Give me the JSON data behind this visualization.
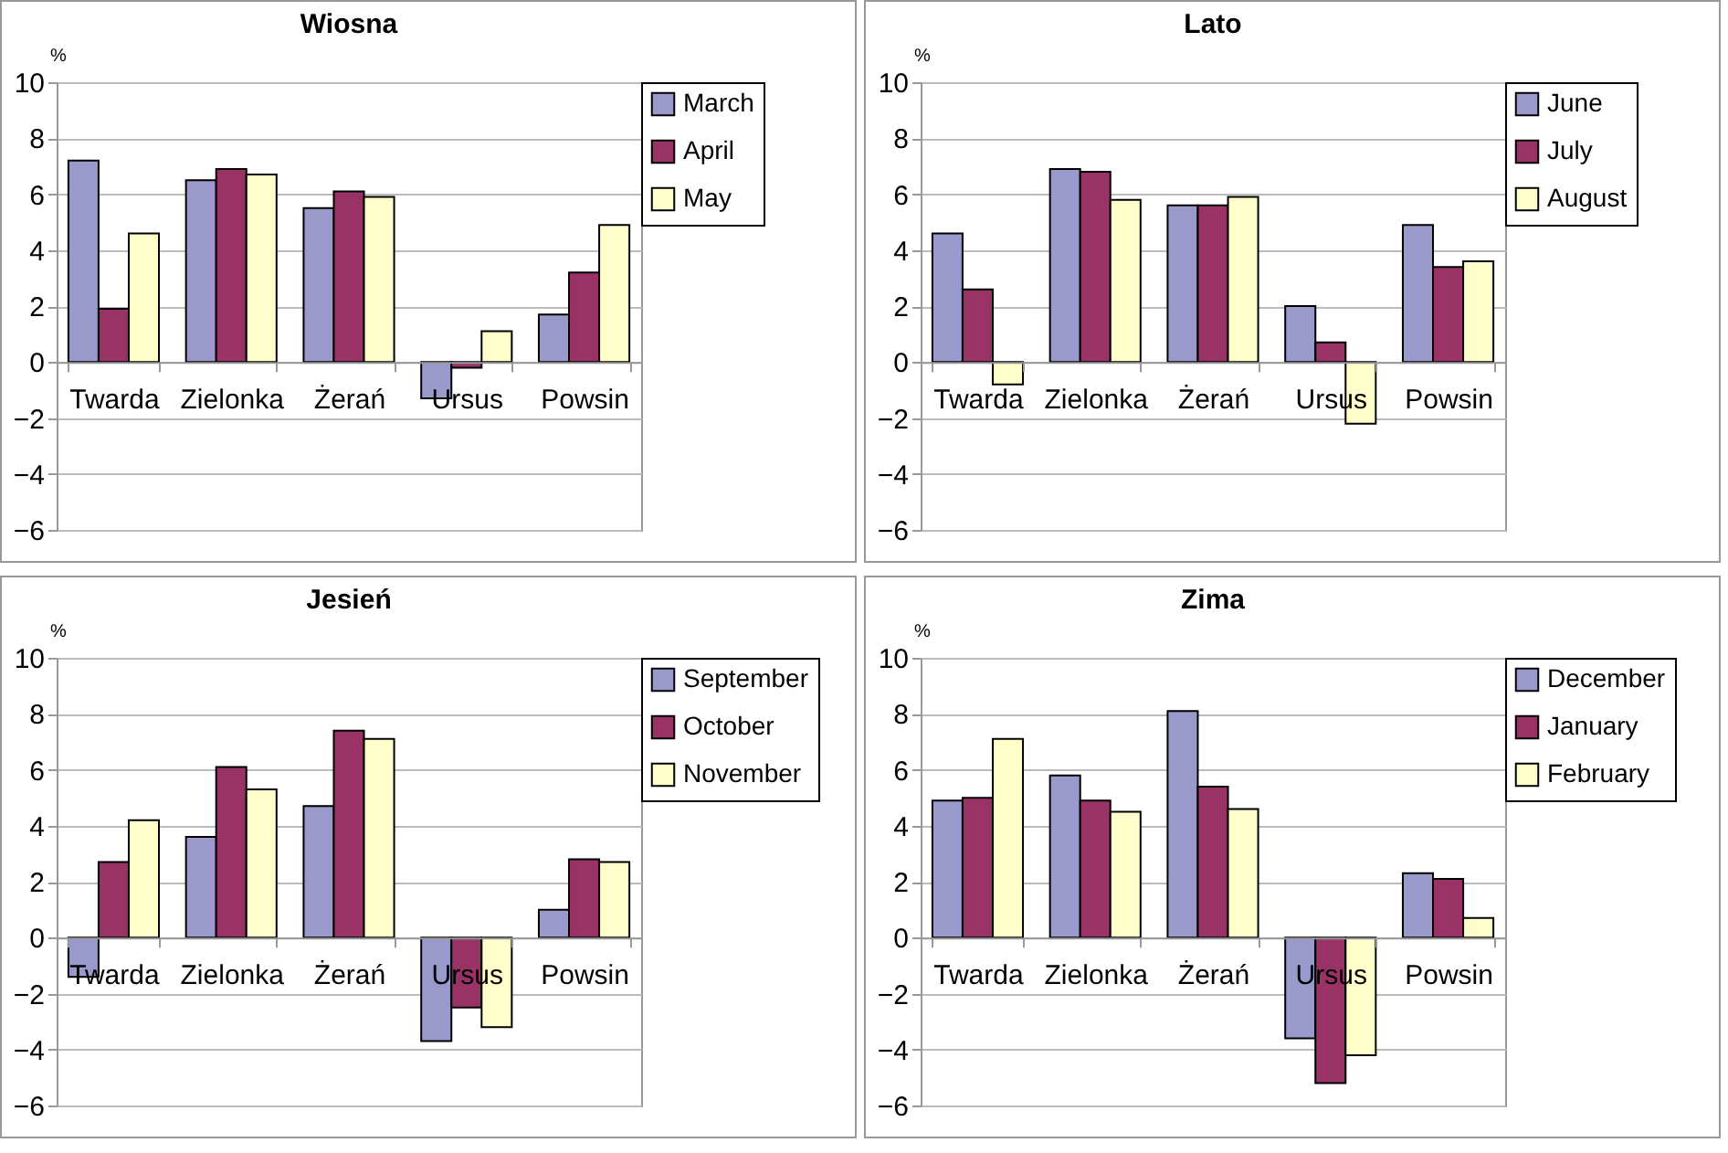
{
  "chart_data": [
    {
      "type": "bar",
      "title": "Wiosna",
      "ylabel": "%",
      "categories": [
        "Twarda",
        "Zielonka",
        "Żerań",
        "Ursus",
        "Powsin"
      ],
      "ylim": [
        -6,
        10
      ],
      "yticks": [
        -6,
        -4,
        -2,
        0,
        2,
        4,
        6,
        8,
        10
      ],
      "grid": "y",
      "legend": "top right",
      "series": [
        {
          "name": "March",
          "color": "#9999cc",
          "values": [
            7.2,
            6.5,
            5.5,
            -1.3,
            1.7
          ]
        },
        {
          "name": "April",
          "color": "#993366",
          "values": [
            1.9,
            6.9,
            6.1,
            -0.2,
            3.2
          ]
        },
        {
          "name": "May",
          "color": "#ffffcc",
          "values": [
            4.6,
            6.7,
            5.9,
            1.1,
            4.9
          ]
        }
      ]
    },
    {
      "type": "bar",
      "title": "Lato",
      "ylabel": "%",
      "categories": [
        "Twarda",
        "Zielonka",
        "Żerań",
        "Ursus",
        "Powsin"
      ],
      "ylim": [
        -6,
        10
      ],
      "yticks": [
        -6,
        -4,
        -2,
        0,
        2,
        4,
        6,
        8,
        10
      ],
      "grid": "y",
      "legend": "top right",
      "series": [
        {
          "name": "June",
          "color": "#9999cc",
          "values": [
            4.6,
            6.9,
            5.6,
            2.0,
            4.9
          ]
        },
        {
          "name": "July",
          "color": "#993366",
          "values": [
            2.6,
            6.8,
            5.6,
            0.7,
            3.4
          ]
        },
        {
          "name": "August",
          "color": "#ffffcc",
          "values": [
            -0.8,
            5.8,
            5.9,
            -2.2,
            3.6
          ]
        }
      ]
    },
    {
      "type": "bar",
      "title": "Jesień",
      "ylabel": "%",
      "categories": [
        "Twarda",
        "Zielonka",
        "Żerań",
        "Ursus",
        "Powsin"
      ],
      "ylim": [
        -6,
        10
      ],
      "yticks": [
        -6,
        -4,
        -2,
        0,
        2,
        4,
        6,
        8,
        10
      ],
      "grid": "y",
      "legend": "top right",
      "series": [
        {
          "name": "September",
          "color": "#9999cc",
          "values": [
            -1.4,
            3.6,
            4.7,
            -3.7,
            1.0
          ]
        },
        {
          "name": "October",
          "color": "#993366",
          "values": [
            2.7,
            6.1,
            7.4,
            -2.5,
            2.8
          ]
        },
        {
          "name": "November",
          "color": "#ffffcc",
          "values": [
            4.2,
            5.3,
            7.1,
            -3.2,
            2.7
          ]
        }
      ]
    },
    {
      "type": "bar",
      "title": "Zima",
      "ylabel": "%",
      "categories": [
        "Twarda",
        "Zielonka",
        "Żerań",
        "Ursus",
        "Powsin"
      ],
      "ylim": [
        -6,
        10
      ],
      "yticks": [
        -6,
        -4,
        -2,
        0,
        2,
        4,
        6,
        8,
        10
      ],
      "grid": "y",
      "legend": "top right",
      "series": [
        {
          "name": "December",
          "color": "#9999cc",
          "values": [
            4.9,
            5.8,
            8.1,
            -3.6,
            2.3
          ]
        },
        {
          "name": "January",
          "color": "#993366",
          "values": [
            5.0,
            4.9,
            5.4,
            -5.2,
            2.1
          ]
        },
        {
          "name": "February",
          "color": "#ffffcc",
          "values": [
            7.1,
            4.5,
            4.6,
            -4.2,
            0.7
          ]
        }
      ]
    }
  ]
}
